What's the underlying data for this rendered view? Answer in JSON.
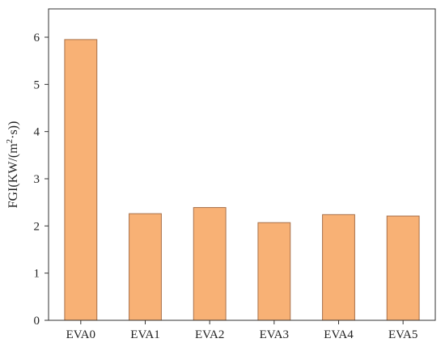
{
  "chart_data": {
    "type": "bar",
    "categories": [
      "EVA0",
      "EVA1",
      "EVA2",
      "EVA3",
      "EVA4",
      "EVA5"
    ],
    "values": [
      5.95,
      2.26,
      2.39,
      2.07,
      2.24,
      2.21
    ],
    "title": "",
    "xlabel": "",
    "ylabel": {
      "base": "FGI(KW/(m",
      "sup": "2",
      "tail": "·s))"
    },
    "ylim": [
      0,
      6.6
    ],
    "yticks": [
      "0",
      "1",
      "2",
      "3",
      "4",
      "5",
      "6"
    ],
    "grid": false,
    "bar_color": "#F8B175",
    "bar_edge_color": "#A8704A"
  }
}
